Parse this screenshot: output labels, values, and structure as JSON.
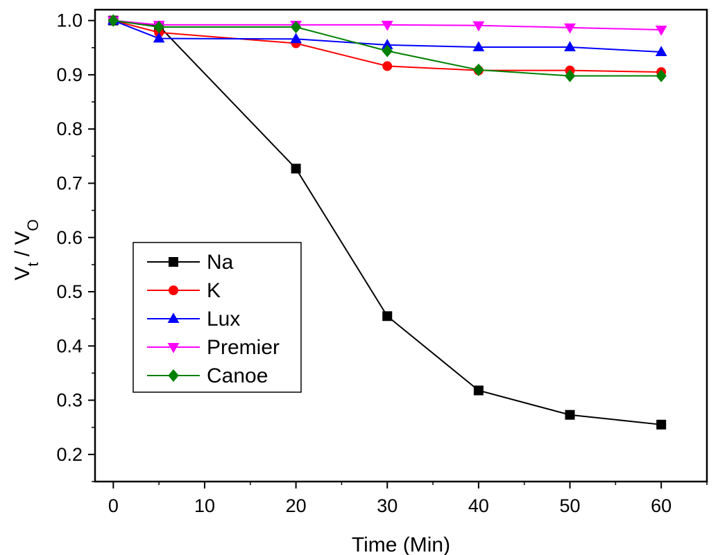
{
  "chart_data": {
    "type": "line",
    "title": "",
    "xlabel": "Time (Min)",
    "ylabel": {
      "parts": [
        "V",
        "t",
        " / V",
        "O"
      ]
    },
    "xlim": [
      -2,
      65
    ],
    "ylim": [
      0.15,
      1.02
    ],
    "x_ticks": [
      0,
      10,
      20,
      30,
      40,
      50,
      60
    ],
    "y_ticks": [
      0.2,
      0.3,
      0.4,
      0.5,
      0.6,
      0.7,
      0.8,
      0.9,
      1.0
    ],
    "x_tick_labels": [
      "0",
      "10",
      "20",
      "30",
      "40",
      "50",
      "60"
    ],
    "y_tick_labels": [
      "0.2",
      "0.3",
      "0.4",
      "0.5",
      "0.6",
      "0.7",
      "0.8",
      "0.9",
      "1.0"
    ],
    "grid": false,
    "legend_position": "left-center",
    "x": [
      0,
      5,
      20,
      30,
      40,
      50,
      60
    ],
    "series": [
      {
        "name": "Na",
        "color": "#000000",
        "marker": "square",
        "values": [
          1.0,
          0.99,
          0.727,
          0.455,
          0.318,
          0.273,
          0.255
        ]
      },
      {
        "name": "K",
        "color": "#ff0000",
        "marker": "circle",
        "values": [
          1.0,
          0.978,
          0.958,
          0.916,
          0.908,
          0.908,
          0.905
        ]
      },
      {
        "name": "Lux",
        "color": "#0000ff",
        "marker": "triangle-up",
        "values": [
          1.0,
          0.967,
          0.966,
          0.955,
          0.951,
          0.951,
          0.942
        ]
      },
      {
        "name": "Premier",
        "color": "#ff00ff",
        "marker": "triangle-down",
        "values": [
          1.0,
          0.992,
          0.992,
          0.992,
          0.991,
          0.987,
          0.983
        ]
      },
      {
        "name": "Canoe",
        "color": "#008000",
        "marker": "diamond",
        "values": [
          1.0,
          0.988,
          0.988,
          0.944,
          0.909,
          0.898,
          0.898
        ]
      }
    ]
  }
}
